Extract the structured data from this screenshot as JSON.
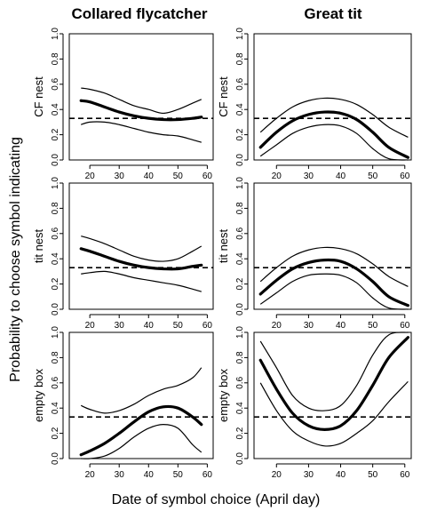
{
  "ylabel": "Probability to choose symbol indicating",
  "xlabel": "Date of symbol choice (April day)",
  "columns": [
    "Collared flycatcher",
    "Great tit"
  ],
  "rows": [
    "CF nest",
    "tit nest",
    "empty box"
  ],
  "chart_data": [
    {
      "type": "line",
      "row": "CF nest",
      "column": "Collared flycatcher",
      "xlim": [
        13,
        62
      ],
      "ylim": [
        0,
        1
      ],
      "xticks": [
        20,
        30,
        40,
        50,
        60
      ],
      "yticks": [
        0.0,
        0.2,
        0.4,
        0.6,
        0.8,
        1.0
      ],
      "x": [
        17,
        20,
        25,
        30,
        35,
        40,
        45,
        50,
        55,
        58
      ],
      "series": [
        {
          "role": "estimate",
          "values": [
            0.47,
            0.46,
            0.42,
            0.38,
            0.35,
            0.33,
            0.32,
            0.32,
            0.33,
            0.34
          ]
        },
        {
          "role": "upper_ci",
          "values": [
            0.57,
            0.56,
            0.53,
            0.48,
            0.43,
            0.4,
            0.37,
            0.4,
            0.45,
            0.48
          ]
        },
        {
          "role": "lower_ci",
          "values": [
            0.28,
            0.3,
            0.3,
            0.28,
            0.25,
            0.22,
            0.2,
            0.19,
            0.16,
            0.14
          ]
        }
      ],
      "reference": 0.33,
      "grid": false
    },
    {
      "type": "line",
      "row": "CF nest",
      "column": "Great tit",
      "xlim": [
        13,
        62
      ],
      "ylim": [
        0,
        1
      ],
      "xticks": [
        20,
        30,
        40,
        50,
        60
      ],
      "yticks": [
        0.0,
        0.2,
        0.4,
        0.6,
        0.8,
        1.0
      ],
      "x": [
        15,
        20,
        25,
        30,
        35,
        40,
        45,
        50,
        55,
        61
      ],
      "series": [
        {
          "role": "estimate",
          "values": [
            0.1,
            0.22,
            0.31,
            0.36,
            0.38,
            0.37,
            0.32,
            0.22,
            0.1,
            0.02
          ]
        },
        {
          "role": "upper_ci",
          "values": [
            0.22,
            0.33,
            0.42,
            0.47,
            0.49,
            0.48,
            0.44,
            0.36,
            0.26,
            0.18
          ]
        },
        {
          "role": "lower_ci",
          "values": [
            0.03,
            0.12,
            0.21,
            0.26,
            0.28,
            0.27,
            0.21,
            0.09,
            0.01,
            0.0
          ]
        }
      ],
      "reference": 0.33,
      "grid": false
    },
    {
      "type": "line",
      "row": "tit nest",
      "column": "Collared flycatcher",
      "xlim": [
        13,
        62
      ],
      "ylim": [
        0,
        1
      ],
      "xticks": [
        20,
        30,
        40,
        50,
        60
      ],
      "yticks": [
        0.0,
        0.2,
        0.4,
        0.6,
        0.8,
        1.0
      ],
      "x": [
        17,
        20,
        25,
        30,
        35,
        40,
        45,
        50,
        55,
        58
      ],
      "series": [
        {
          "role": "estimate",
          "values": [
            0.48,
            0.46,
            0.42,
            0.38,
            0.35,
            0.33,
            0.32,
            0.32,
            0.34,
            0.35
          ]
        },
        {
          "role": "upper_ci",
          "values": [
            0.58,
            0.56,
            0.52,
            0.47,
            0.42,
            0.39,
            0.38,
            0.4,
            0.46,
            0.5
          ]
        },
        {
          "role": "lower_ci",
          "values": [
            0.28,
            0.29,
            0.3,
            0.28,
            0.25,
            0.23,
            0.21,
            0.19,
            0.16,
            0.14
          ]
        }
      ],
      "reference": 0.33,
      "grid": false
    },
    {
      "type": "line",
      "row": "tit nest",
      "column": "Great tit",
      "xlim": [
        13,
        62
      ],
      "ylim": [
        0,
        1
      ],
      "xticks": [
        20,
        30,
        40,
        50,
        60
      ],
      "yticks": [
        0.0,
        0.2,
        0.4,
        0.6,
        0.8,
        1.0
      ],
      "x": [
        15,
        20,
        25,
        30,
        35,
        40,
        45,
        50,
        55,
        61
      ],
      "series": [
        {
          "role": "estimate",
          "values": [
            0.12,
            0.23,
            0.32,
            0.37,
            0.39,
            0.38,
            0.32,
            0.22,
            0.1,
            0.03
          ]
        },
        {
          "role": "upper_ci",
          "values": [
            0.22,
            0.33,
            0.42,
            0.47,
            0.49,
            0.48,
            0.44,
            0.36,
            0.26,
            0.18
          ]
        },
        {
          "role": "lower_ci",
          "values": [
            0.04,
            0.13,
            0.22,
            0.27,
            0.28,
            0.27,
            0.21,
            0.09,
            0.01,
            0.0
          ]
        }
      ],
      "reference": 0.33,
      "grid": false
    },
    {
      "type": "line",
      "row": "empty box",
      "column": "Collared flycatcher",
      "xlim": [
        13,
        62
      ],
      "ylim": [
        0,
        1
      ],
      "xticks": [
        20,
        30,
        40,
        50,
        60
      ],
      "yticks": [
        0.0,
        0.2,
        0.4,
        0.6,
        0.8,
        1.0
      ],
      "x": [
        17,
        20,
        25,
        30,
        35,
        40,
        45,
        50,
        55,
        58
      ],
      "series": [
        {
          "role": "estimate",
          "values": [
            0.03,
            0.06,
            0.12,
            0.2,
            0.29,
            0.37,
            0.41,
            0.4,
            0.33,
            0.27
          ]
        },
        {
          "role": "upper_ci",
          "values": [
            0.42,
            0.39,
            0.36,
            0.38,
            0.43,
            0.5,
            0.55,
            0.58,
            0.64,
            0.72
          ]
        },
        {
          "role": "lower_ci",
          "values": [
            0.0,
            0.0,
            0.02,
            0.08,
            0.17,
            0.24,
            0.27,
            0.24,
            0.11,
            0.05
          ]
        }
      ],
      "reference": 0.33,
      "grid": false
    },
    {
      "type": "line",
      "row": "empty box",
      "column": "Great tit",
      "xlim": [
        13,
        62
      ],
      "ylim": [
        0,
        1
      ],
      "xticks": [
        20,
        30,
        40,
        50,
        60
      ],
      "yticks": [
        0.0,
        0.2,
        0.4,
        0.6,
        0.8,
        1.0
      ],
      "x": [
        15,
        20,
        25,
        30,
        35,
        40,
        45,
        50,
        55,
        61
      ],
      "series": [
        {
          "role": "estimate",
          "values": [
            0.78,
            0.55,
            0.36,
            0.26,
            0.23,
            0.26,
            0.38,
            0.58,
            0.8,
            0.96
          ]
        },
        {
          "role": "upper_ci",
          "values": [
            0.93,
            0.72,
            0.5,
            0.4,
            0.38,
            0.42,
            0.58,
            0.82,
            0.98,
            1.0
          ]
        },
        {
          "role": "lower_ci",
          "values": [
            0.6,
            0.38,
            0.22,
            0.14,
            0.1,
            0.12,
            0.2,
            0.3,
            0.45,
            0.61
          ]
        }
      ],
      "reference": 0.33,
      "grid": false
    }
  ]
}
